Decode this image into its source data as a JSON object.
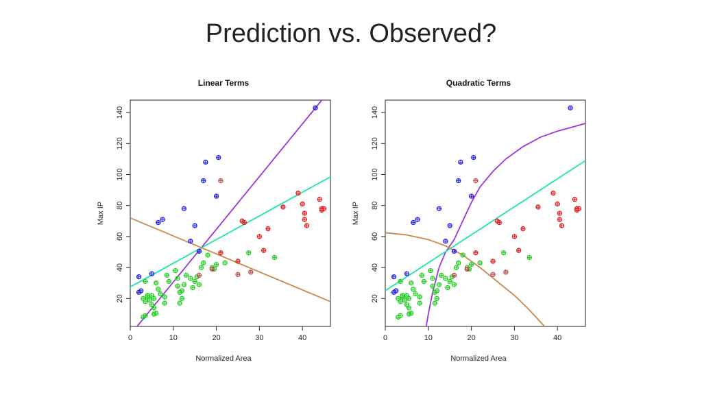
{
  "slide": {
    "title": "Prediction vs. Observed?"
  },
  "chart_data": [
    {
      "type": "scatter",
      "title": "Linear Terms",
      "xlabel": "Normalized Area",
      "ylabel": "Max IP",
      "xlim": [
        0,
        46.5
      ],
      "ylim": [
        2,
        148
      ],
      "xticks": [
        0,
        10,
        20,
        30,
        40
      ],
      "yticks": [
        20,
        40,
        60,
        80,
        100,
        120,
        140
      ],
      "grid": false,
      "series": [
        {
          "color": "#1f1fe6",
          "points": [
            [
              2,
              24
            ],
            [
              2.5,
              25
            ],
            [
              2,
              34
            ],
            [
              5,
              36
            ],
            [
              6.5,
              69
            ],
            [
              7.5,
              71
            ],
            [
              12.5,
              78
            ],
            [
              15,
              67
            ],
            [
              14,
              57
            ],
            [
              16,
              50.5
            ],
            [
              17,
              96
            ],
            [
              17.5,
              108
            ],
            [
              20,
              86
            ],
            [
              20.5,
              111
            ],
            [
              43,
              143
            ]
          ]
        },
        {
          "color": "#22cc22",
          "points": [
            [
              3,
              8
            ],
            [
              3.5,
              9
            ],
            [
              5.5,
              10
            ],
            [
              6,
              10.5
            ],
            [
              3,
              20
            ],
            [
              3.5,
              18
            ],
            [
              4,
              22
            ],
            [
              4.5,
              19
            ],
            [
              5,
              22
            ],
            [
              5.5,
              20
            ],
            [
              4,
              21
            ],
            [
              5,
              16
            ],
            [
              5.5,
              14
            ],
            [
              3.5,
              31
            ],
            [
              6,
              30
            ],
            [
              6.5,
              26
            ],
            [
              7,
              23
            ],
            [
              8,
              17
            ],
            [
              8,
              21
            ],
            [
              8.5,
              35
            ],
            [
              9,
              31
            ],
            [
              10.5,
              38
            ],
            [
              11,
              33
            ],
            [
              11,
              28
            ],
            [
              11.5,
              24
            ],
            [
              12,
              20
            ],
            [
              11.5,
              17
            ],
            [
              12,
              25
            ],
            [
              12.5,
              29
            ],
            [
              13,
              35
            ],
            [
              14,
              33
            ],
            [
              15,
              31
            ],
            [
              14.5,
              27
            ],
            [
              15.5,
              34
            ],
            [
              16,
              29
            ],
            [
              16.5,
              40
            ],
            [
              17,
              43
            ],
            [
              18,
              48
            ],
            [
              19,
              40
            ],
            [
              19.5,
              39
            ],
            [
              20,
              42
            ],
            [
              22,
              43
            ],
            [
              27.5,
              49.5
            ],
            [
              33.5,
              46.5
            ]
          ]
        },
        {
          "color": "#e01b1b",
          "points": [
            [
              21,
              49.5
            ],
            [
              25,
              44
            ],
            [
              26,
              70
            ],
            [
              26.5,
              69
            ],
            [
              30,
              60
            ],
            [
              31,
              51
            ],
            [
              32,
              65
            ],
            [
              35.5,
              79
            ],
            [
              39,
              88
            ],
            [
              40,
              81
            ],
            [
              40.5,
              75
            ],
            [
              40.5,
              71
            ],
            [
              41,
              67
            ],
            [
              44,
              84
            ],
            [
              44.5,
              77
            ],
            [
              44.5,
              78
            ],
            [
              45,
              78
            ]
          ]
        },
        {
          "color": "#b84b4b",
          "points": [
            [
              16,
              35
            ],
            [
              19,
              39
            ],
            [
              21,
              96
            ],
            [
              25,
              35.5
            ],
            [
              28,
              37
            ]
          ]
        }
      ],
      "fit_lines": [
        {
          "color": "#9d33de",
          "points": [
            [
              1.6,
              2
            ],
            [
              44.5,
              148
            ]
          ]
        },
        {
          "color": "#18e8a8",
          "points": [
            [
              0,
              27.5
            ],
            [
              46.5,
              98.5
            ]
          ]
        },
        {
          "color": "#c8874c",
          "points": [
            [
              0,
              72
            ],
            [
              46.5,
              18
            ]
          ]
        }
      ]
    },
    {
      "type": "scatter",
      "title": "Quadratic Terms",
      "xlabel": "Normalized Area",
      "ylabel": "Max IP",
      "xlim": [
        0,
        46.5
      ],
      "ylim": [
        2,
        148
      ],
      "xticks": [
        0,
        10,
        20,
        30,
        40
      ],
      "yticks": [
        20,
        40,
        60,
        80,
        100,
        120,
        140
      ],
      "grid": false,
      "series": [
        {
          "color": "#1f1fe6",
          "points": [
            [
              2,
              24
            ],
            [
              2.5,
              25
            ],
            [
              2,
              34
            ],
            [
              5,
              36
            ],
            [
              6.5,
              69
            ],
            [
              7.5,
              71
            ],
            [
              12.5,
              78
            ],
            [
              15,
              67
            ],
            [
              14,
              57
            ],
            [
              16,
              50.5
            ],
            [
              17,
              96
            ],
            [
              17.5,
              108
            ],
            [
              20,
              86
            ],
            [
              20.5,
              111
            ],
            [
              43,
              143
            ]
          ]
        },
        {
          "color": "#22cc22",
          "points": [
            [
              3,
              8
            ],
            [
              3.5,
              9
            ],
            [
              5.5,
              10
            ],
            [
              6,
              10.5
            ],
            [
              3,
              20
            ],
            [
              3.5,
              18
            ],
            [
              4,
              22
            ],
            [
              4.5,
              19
            ],
            [
              5,
              22
            ],
            [
              5.5,
              20
            ],
            [
              4,
              21
            ],
            [
              5,
              16
            ],
            [
              5.5,
              14
            ],
            [
              3.5,
              31
            ],
            [
              6,
              30
            ],
            [
              6.5,
              26
            ],
            [
              7,
              23
            ],
            [
              8,
              17
            ],
            [
              8,
              21
            ],
            [
              8.5,
              35
            ],
            [
              9,
              31
            ],
            [
              10.5,
              38
            ],
            [
              11,
              33
            ],
            [
              11,
              28
            ],
            [
              11.5,
              24
            ],
            [
              12,
              20
            ],
            [
              11.5,
              17
            ],
            [
              12,
              25
            ],
            [
              12.5,
              29
            ],
            [
              13,
              35
            ],
            [
              14,
              33
            ],
            [
              15,
              31
            ],
            [
              14.5,
              27
            ],
            [
              15.5,
              34
            ],
            [
              16,
              29
            ],
            [
              16.5,
              40
            ],
            [
              17,
              43
            ],
            [
              18,
              48
            ],
            [
              19,
              40
            ],
            [
              19.5,
              39
            ],
            [
              20,
              42
            ],
            [
              22,
              43
            ],
            [
              27.5,
              49.5
            ],
            [
              33.5,
              46.5
            ]
          ]
        },
        {
          "color": "#e01b1b",
          "points": [
            [
              21,
              49.5
            ],
            [
              25,
              44
            ],
            [
              26,
              70
            ],
            [
              26.5,
              69
            ],
            [
              30,
              60
            ],
            [
              31,
              51
            ],
            [
              32,
              65
            ],
            [
              35.5,
              79
            ],
            [
              39,
              88
            ],
            [
              40,
              81
            ],
            [
              40.5,
              75
            ],
            [
              40.5,
              71
            ],
            [
              41,
              67
            ],
            [
              44,
              84
            ],
            [
              44.5,
              77
            ],
            [
              44.5,
              78
            ],
            [
              45,
              78
            ]
          ]
        },
        {
          "color": "#b84b4b",
          "points": [
            [
              16,
              35
            ],
            [
              19,
              39
            ],
            [
              21,
              96
            ],
            [
              25,
              35.5
            ],
            [
              28,
              37
            ]
          ]
        }
      ],
      "fit_lines": [
        {
          "color": "#9d33de",
          "points": [
            [
              9.5,
              2
            ],
            [
              10,
              10
            ],
            [
              11,
              24
            ],
            [
              12.5,
              40
            ],
            [
              14,
              50
            ],
            [
              16,
              58
            ],
            [
              18,
              70
            ],
            [
              20,
              82
            ],
            [
              22,
              92
            ],
            [
              25,
              102
            ],
            [
              28,
              110
            ],
            [
              32,
              118
            ],
            [
              36,
              124
            ],
            [
              40,
              128
            ],
            [
              44,
              131
            ],
            [
              46.5,
              133
            ]
          ]
        },
        {
          "color": "#18e8a8",
          "points": [
            [
              0,
              25
            ],
            [
              46.5,
              109
            ]
          ]
        },
        {
          "color": "#c8874c",
          "points": [
            [
              0,
              62.5
            ],
            [
              5,
              61
            ],
            [
              10,
              58
            ],
            [
              14,
              54
            ],
            [
              18,
              48
            ],
            [
              22,
              40
            ],
            [
              26,
              31
            ],
            [
              30,
              22
            ],
            [
              33,
              14
            ],
            [
              35,
              8
            ],
            [
              37,
              2
            ]
          ]
        }
      ]
    }
  ]
}
